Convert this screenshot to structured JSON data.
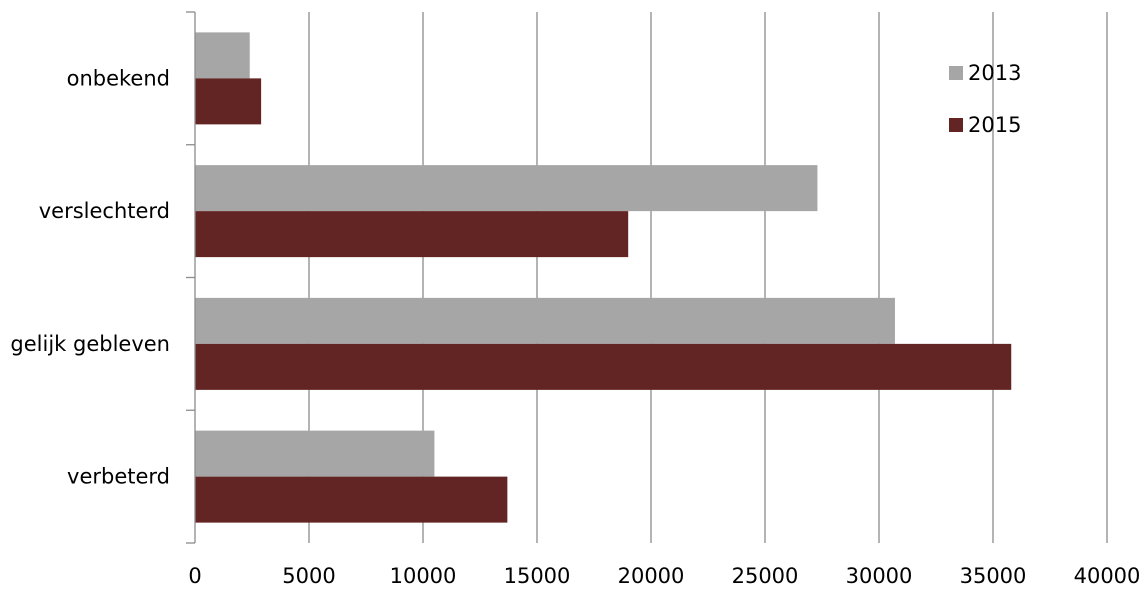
{
  "chart_data": {
    "type": "bar",
    "orientation": "horizontal",
    "categories": [
      "verbeterd",
      "gelijk gebleven",
      "verslechterd",
      "onbekend"
    ],
    "series": [
      {
        "name": "2013",
        "color": "#a6a6a6",
        "values": [
          10500,
          30700,
          27300,
          2400
        ]
      },
      {
        "name": "2015",
        "color": "#632523",
        "values": [
          13700,
          35800,
          19000,
          2900
        ]
      }
    ],
    "xlim": [
      0,
      40000
    ],
    "xticks": [
      0,
      5000,
      10000,
      15000,
      20000,
      25000,
      30000,
      35000,
      40000
    ],
    "grid": "vertical",
    "legend": "top-right",
    "title": "",
    "xlabel": "",
    "ylabel": ""
  }
}
